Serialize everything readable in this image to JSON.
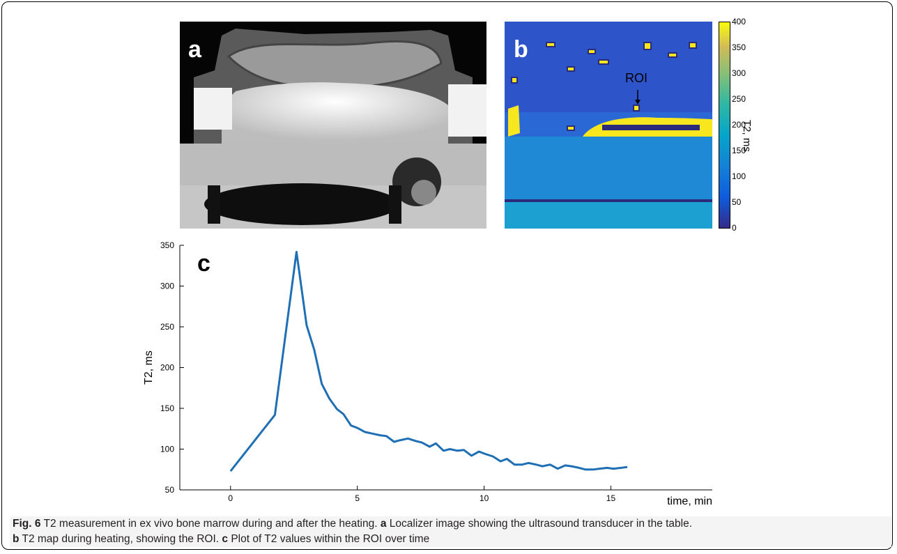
{
  "panels": {
    "a": {
      "letter": "a"
    },
    "b": {
      "letter": "b",
      "roi_label": "ROI",
      "colorbar": {
        "ticks": [
          "400",
          "350",
          "300",
          "250",
          "200",
          "150",
          "100",
          "50",
          "0"
        ],
        "label": "T2, ms"
      }
    },
    "c": {
      "letter": "c"
    }
  },
  "caption": {
    "fig_label": "Fig. 6",
    "title": " T2 measurement in ex vivo bone marrow during and after the heating. ",
    "a_label": "a",
    "a_text": " Localizer image showing the ultrasound transducer in the table.",
    "b_label": "b",
    "b_text": " T2 map during heating, showing the ROI. ",
    "c_label": "c",
    "c_text": " Plot of T2 values within the ROI over time"
  },
  "chart_data": {
    "type": "line",
    "xlabel": "time, min",
    "ylabel": "T2, ms",
    "xlim": [
      -2,
      19
    ],
    "ylim": [
      50,
      350
    ],
    "xticks": [
      0,
      5,
      10,
      15
    ],
    "yticks": [
      50,
      100,
      150,
      200,
      250,
      300,
      350
    ],
    "grid": false,
    "color": "#1f6fb5",
    "series": [
      {
        "x": [
          0,
          1.75,
          2.6,
          3.0,
          3.3,
          3.6,
          3.9,
          4.2,
          4.45,
          4.75,
          5.0,
          5.3,
          5.6,
          5.9,
          6.15,
          6.45,
          6.7,
          7.0,
          7.3,
          7.55,
          7.85,
          8.1,
          8.4,
          8.65,
          8.95,
          9.2,
          9.5,
          9.8,
          10.05,
          10.35,
          10.65,
          10.9,
          11.2,
          11.5,
          11.75,
          12.05,
          12.3,
          12.6,
          12.9,
          13.2,
          13.45,
          13.75,
          14.0,
          14.3,
          14.55,
          14.85,
          15.1,
          15.4,
          15.65
        ],
        "y": [
          73,
          142,
          342,
          252,
          222,
          180,
          162,
          149,
          143,
          129,
          126,
          121,
          119,
          117,
          116,
          109,
          111,
          113,
          110,
          108,
          103,
          107,
          98,
          100,
          98,
          99,
          92,
          97,
          94,
          91,
          85,
          88,
          81,
          81,
          83,
          81,
          79,
          81,
          76,
          80,
          79,
          77,
          75,
          75,
          76,
          77,
          76,
          77,
          78
        ]
      }
    ]
  }
}
